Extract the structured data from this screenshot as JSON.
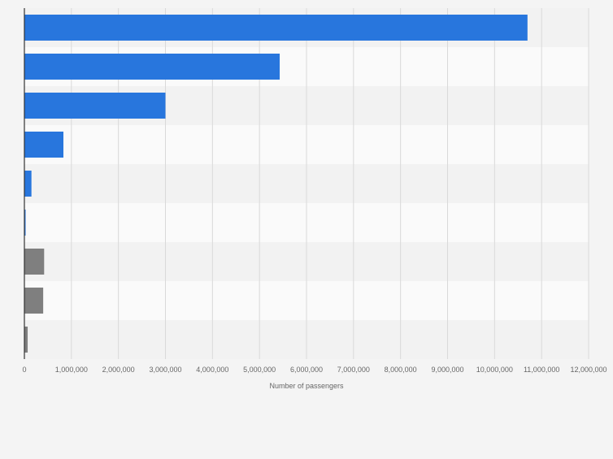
{
  "colors": {
    "background": "#f4f4f4",
    "band_light": "#fafafa",
    "band_dark": "#f2f2f2",
    "grid": "#d9d9d9",
    "axis": "#333333",
    "tick_text": "#666666",
    "primary": "#2876dd",
    "secondary": "#7f7f7f"
  },
  "chart_data": {
    "type": "bar",
    "orientation": "horizontal",
    "categories": [
      "",
      "",
      "",
      "",
      "",
      "",
      "",
      "",
      ""
    ],
    "values": [
      10700000,
      5430000,
      3000000,
      830000,
      150000,
      20000,
      420000,
      400000,
      70000
    ],
    "bar_colors": [
      "#2876dd",
      "#2876dd",
      "#2876dd",
      "#2876dd",
      "#2876dd",
      "#2876dd",
      "#7f7f7f",
      "#7f7f7f",
      "#7f7f7f"
    ],
    "xlabel": "Number of passengers",
    "ylabel": "",
    "xlim": [
      0,
      12000000
    ],
    "x_ticks": [
      0,
      1000000,
      2000000,
      3000000,
      4000000,
      5000000,
      6000000,
      7000000,
      8000000,
      9000000,
      10000000,
      11000000,
      12000000
    ],
    "x_tick_labels": [
      "0",
      "1,000,000",
      "2,000,000",
      "3,000,000",
      "4,000,000",
      "5,000,000",
      "6,000,000",
      "7,000,000",
      "8,000,000",
      "9,000,000",
      "10,000,000",
      "11,000,000",
      "12,000,000"
    ],
    "grid": true,
    "legend": "none"
  }
}
